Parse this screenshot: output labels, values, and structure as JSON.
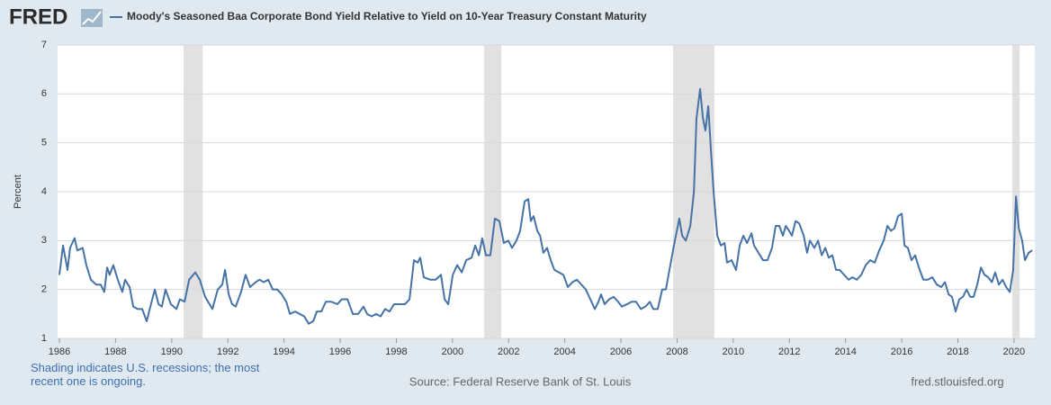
{
  "logo": "FRED",
  "chart_data": {
    "type": "line",
    "y_label": "Percent",
    "note": "Shading indicates U.S. recessions; the most recent one is ongoing.",
    "source": "Source: Federal Reserve Bank of St. Louis",
    "site": "fred.stlouisfed.org",
    "xlim": [
      1986,
      2020.74
    ],
    "xticks": [
      1986,
      1988,
      1990,
      1992,
      1994,
      1996,
      1998,
      2000,
      2002,
      2004,
      2006,
      2008,
      2010,
      2012,
      2014,
      2016,
      2018,
      2020
    ],
    "ylim": [
      1,
      7
    ],
    "yticks": [
      1,
      2,
      3,
      4,
      5,
      6,
      7
    ],
    "grid": true,
    "recession_color": "#e1e1e1",
    "recessions": [
      [
        1990.42,
        1991.1
      ],
      [
        2001.13,
        2001.74
      ],
      [
        2007.86,
        2009.33
      ],
      [
        2019.94,
        2020.2
      ]
    ],
    "x": [
      1986.0,
      1986.13,
      1986.29,
      1986.38,
      1986.54,
      1986.64,
      1986.83,
      1986.96,
      1987.12,
      1987.31,
      1987.47,
      1987.6,
      1987.7,
      1987.79,
      1987.92,
      1988.08,
      1988.24,
      1988.34,
      1988.5,
      1988.63,
      1988.79,
      1988.95,
      1989.11,
      1989.24,
      1989.4,
      1989.53,
      1989.65,
      1989.78,
      1989.97,
      1990.17,
      1990.29,
      1990.46,
      1990.62,
      1990.84,
      1991.0,
      1991.19,
      1991.45,
      1991.64,
      1991.8,
      1991.9,
      1992.03,
      1992.15,
      1992.28,
      1992.47,
      1992.63,
      1992.79,
      1992.99,
      1993.12,
      1993.28,
      1993.44,
      1993.6,
      1993.76,
      1993.92,
      1994.08,
      1994.21,
      1994.4,
      1994.56,
      1994.72,
      1994.88,
      1995.04,
      1995.17,
      1995.33,
      1995.49,
      1995.68,
      1995.9,
      1996.06,
      1996.26,
      1996.45,
      1996.64,
      1996.83,
      1996.96,
      1997.12,
      1997.28,
      1997.44,
      1997.6,
      1997.76,
      1997.92,
      1998.12,
      1998.31,
      1998.47,
      1998.63,
      1998.76,
      1998.85,
      1998.98,
      1999.21,
      1999.4,
      1999.59,
      1999.72,
      1999.85,
      2000.01,
      2000.17,
      2000.33,
      2000.49,
      2000.68,
      2000.81,
      2000.94,
      2001.06,
      2001.19,
      2001.35,
      2001.51,
      2001.67,
      2001.83,
      2001.99,
      2002.12,
      2002.28,
      2002.41,
      2002.57,
      2002.7,
      2002.79,
      2002.89,
      2003.02,
      2003.12,
      2003.24,
      2003.37,
      2003.5,
      2003.63,
      2003.79,
      2003.95,
      2004.11,
      2004.27,
      2004.43,
      2004.59,
      2004.75,
      2004.91,
      2005.07,
      2005.2,
      2005.29,
      2005.42,
      2005.58,
      2005.74,
      2005.9,
      2006.03,
      2006.22,
      2006.38,
      2006.54,
      2006.71,
      2006.87,
      2007.03,
      2007.15,
      2007.31,
      2007.47,
      2007.6,
      2007.76,
      2007.92,
      2008.08,
      2008.18,
      2008.31,
      2008.47,
      2008.6,
      2008.69,
      2008.82,
      2008.92,
      2009.01,
      2009.11,
      2009.21,
      2009.3,
      2009.43,
      2009.56,
      2009.69,
      2009.78,
      2009.94,
      2010.1,
      2010.23,
      2010.36,
      2010.49,
      2010.65,
      2010.74,
      2010.9,
      2011.06,
      2011.22,
      2011.38,
      2011.51,
      2011.64,
      2011.77,
      2011.87,
      2011.99,
      2012.09,
      2012.22,
      2012.35,
      2012.51,
      2012.63,
      2012.73,
      2012.89,
      2013.02,
      2013.15,
      2013.28,
      2013.4,
      2013.53,
      2013.66,
      2013.79,
      2013.95,
      2014.11,
      2014.24,
      2014.4,
      2014.56,
      2014.72,
      2014.88,
      2015.04,
      2015.2,
      2015.36,
      2015.49,
      2015.62,
      2015.74,
      2015.87,
      2016.0,
      2016.1,
      2016.22,
      2016.35,
      2016.48,
      2016.61,
      2016.77,
      2016.93,
      2017.09,
      2017.25,
      2017.41,
      2017.54,
      2017.67,
      2017.79,
      2017.92,
      2018.05,
      2018.18,
      2018.31,
      2018.44,
      2018.56,
      2018.69,
      2018.82,
      2018.95,
      2019.08,
      2019.21,
      2019.33,
      2019.46,
      2019.59,
      2019.72,
      2019.85,
      2019.97,
      2020.07,
      2020.17,
      2020.29,
      2020.39,
      2020.52,
      2020.65
    ],
    "series": [
      {
        "name": "Moody's Seasoned Baa Corporate Bond Yield Relative to Yield on 10-Year Treasury Constant Maturity",
        "color": "#4572a7",
        "values": [
          2.3,
          2.9,
          2.4,
          2.85,
          3.05,
          2.8,
          2.85,
          2.5,
          2.2,
          2.1,
          2.1,
          1.95,
          2.45,
          2.3,
          2.5,
          2.2,
          1.95,
          2.2,
          2.05,
          1.65,
          1.6,
          1.6,
          1.35,
          1.65,
          2.0,
          1.7,
          1.65,
          2.0,
          1.7,
          1.6,
          1.8,
          1.75,
          2.2,
          2.35,
          2.2,
          1.85,
          1.6,
          2.0,
          2.1,
          2.4,
          1.9,
          1.7,
          1.65,
          1.95,
          2.3,
          2.05,
          2.15,
          2.2,
          2.15,
          2.2,
          2.0,
          2.0,
          1.9,
          1.75,
          1.5,
          1.55,
          1.5,
          1.45,
          1.3,
          1.35,
          1.55,
          1.55,
          1.75,
          1.75,
          1.7,
          1.8,
          1.8,
          1.5,
          1.5,
          1.65,
          1.5,
          1.45,
          1.5,
          1.45,
          1.6,
          1.55,
          1.7,
          1.7,
          1.7,
          1.8,
          2.6,
          2.55,
          2.65,
          2.25,
          2.2,
          2.2,
          2.3,
          1.8,
          1.7,
          2.3,
          2.5,
          2.35,
          2.6,
          2.65,
          2.9,
          2.7,
          3.05,
          2.7,
          2.7,
          3.45,
          3.4,
          2.95,
          3.0,
          2.85,
          3.0,
          3.2,
          3.8,
          3.85,
          3.4,
          3.5,
          3.2,
          3.1,
          2.75,
          2.85,
          2.6,
          2.4,
          2.35,
          2.3,
          2.05,
          2.15,
          2.2,
          2.1,
          2.0,
          1.8,
          1.6,
          1.75,
          1.9,
          1.7,
          1.8,
          1.85,
          1.75,
          1.65,
          1.7,
          1.75,
          1.75,
          1.6,
          1.65,
          1.75,
          1.6,
          1.6,
          2.0,
          2.0,
          2.5,
          3.0,
          3.45,
          3.1,
          3.0,
          3.3,
          4.0,
          5.5,
          6.1,
          5.5,
          5.25,
          5.75,
          4.8,
          4.0,
          3.1,
          2.9,
          2.95,
          2.55,
          2.6,
          2.4,
          2.9,
          3.1,
          2.95,
          3.15,
          2.9,
          2.75,
          2.6,
          2.6,
          2.85,
          3.3,
          3.3,
          3.1,
          3.3,
          3.2,
          3.1,
          3.4,
          3.35,
          3.1,
          2.75,
          3.0,
          2.85,
          3.0,
          2.7,
          2.85,
          2.65,
          2.7,
          2.4,
          2.4,
          2.3,
          2.2,
          2.25,
          2.2,
          2.3,
          2.5,
          2.6,
          2.55,
          2.8,
          3.0,
          3.3,
          3.2,
          3.25,
          3.5,
          3.55,
          2.9,
          2.85,
          2.6,
          2.7,
          2.45,
          2.2,
          2.2,
          2.25,
          2.1,
          2.05,
          2.15,
          1.9,
          1.85,
          1.55,
          1.8,
          1.85,
          2.0,
          1.85,
          1.85,
          2.1,
          2.45,
          2.3,
          2.25,
          2.15,
          2.35,
          2.1,
          2.2,
          2.05,
          1.95,
          2.4,
          3.9,
          3.25,
          3.0,
          2.6,
          2.75,
          2.8
        ]
      }
    ]
  }
}
